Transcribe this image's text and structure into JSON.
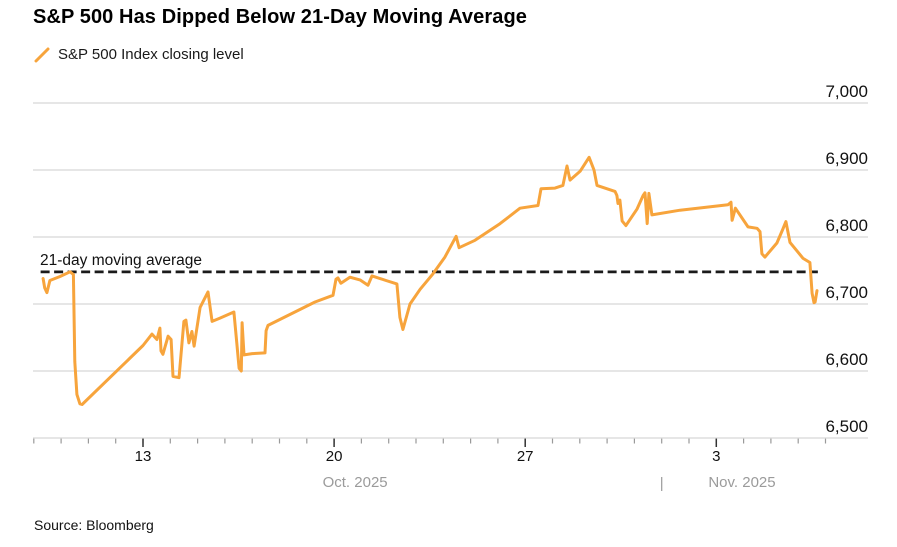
{
  "title": "S&P 500 Has Dipped Below 21-Day Moving Average",
  "legend": {
    "label": "S&P 500 Index closing level",
    "marker_color": "#F7A43C"
  },
  "source": "Source: Bloomberg",
  "chart_data": {
    "type": "line",
    "title": "S&P 500 Has Dipped Below 21-Day Moving Average",
    "grid": true,
    "legend_position": "top-left",
    "y_axis": {
      "side": "right",
      "range": [
        6500,
        7000
      ],
      "ticks": [
        {
          "value": 7000,
          "label": "7,000"
        },
        {
          "value": 6900,
          "label": "6,900"
        },
        {
          "value": 6800,
          "label": "6,800"
        },
        {
          "value": 6700,
          "label": "6,700"
        },
        {
          "value": 6600,
          "label": "6,600"
        },
        {
          "value": 6500,
          "label": "6,500"
        }
      ]
    },
    "x_axis": {
      "unit": "calendar-day-index (October day number; November = day + 31)",
      "range": [
        8.97,
        39.56
      ],
      "minor_tick_days": [
        9,
        10,
        11,
        12,
        13,
        14,
        15,
        16,
        17,
        18,
        19,
        20,
        21,
        22,
        23,
        24,
        25,
        26,
        27,
        28,
        29,
        30,
        31,
        32,
        33,
        34,
        35,
        36,
        37,
        38
      ],
      "major_ticks": [
        {
          "day": 13,
          "label": "13"
        },
        {
          "day": 20,
          "label": "20"
        },
        {
          "day": 27,
          "label": "27"
        },
        {
          "day": 34,
          "label": "3"
        }
      ],
      "month_labels": [
        {
          "label": "Oct. 2025",
          "center_day": 20.77
        },
        {
          "label": "Nov. 2025",
          "center_day": 34.94
        }
      ],
      "divider": {
        "glyph": "|",
        "day": 32
      }
    },
    "annotation_line": {
      "label": "21-day moving average",
      "value": 6748,
      "style": "dashed",
      "color": "#1a1a1a",
      "span_days": [
        9.25,
        37.72
      ]
    },
    "series": [
      {
        "name": "S&P 500 Index closing level",
        "color": "#F7A43C",
        "points": [
          [
            9.34,
            6738
          ],
          [
            9.4,
            6724
          ],
          [
            9.48,
            6717
          ],
          [
            9.59,
            6735
          ],
          [
            9.96,
            6741
          ],
          [
            10.33,
            6748
          ],
          [
            10.45,
            6744
          ],
          [
            10.5,
            6614
          ],
          [
            10.58,
            6565
          ],
          [
            10.69,
            6551
          ],
          [
            10.77,
            6550
          ],
          [
            13.0,
            6638
          ],
          [
            13.33,
            6655
          ],
          [
            13.51,
            6647
          ],
          [
            13.62,
            6664
          ],
          [
            13.66,
            6630
          ],
          [
            13.73,
            6625
          ],
          [
            13.92,
            6652
          ],
          [
            14.03,
            6647
          ],
          [
            14.1,
            6592
          ],
          [
            14.32,
            6590
          ],
          [
            14.5,
            6674
          ],
          [
            14.57,
            6676
          ],
          [
            14.68,
            6642
          ],
          [
            14.79,
            6659
          ],
          [
            14.87,
            6637
          ],
          [
            15.09,
            6695
          ],
          [
            15.38,
            6718
          ],
          [
            15.53,
            6674
          ],
          [
            15.82,
            6679
          ],
          [
            16.33,
            6688
          ],
          [
            16.44,
            6640
          ],
          [
            16.52,
            6604
          ],
          [
            16.6,
            6600
          ],
          [
            16.63,
            6672
          ],
          [
            16.7,
            6624
          ],
          [
            17.0,
            6626
          ],
          [
            17.47,
            6627
          ],
          [
            17.51,
            6660
          ],
          [
            17.58,
            6668
          ],
          [
            19.3,
            6703
          ],
          [
            19.96,
            6713
          ],
          [
            20.07,
            6737
          ],
          [
            20.14,
            6739
          ],
          [
            20.25,
            6731
          ],
          [
            20.58,
            6740
          ],
          [
            20.95,
            6736
          ],
          [
            21.24,
            6728
          ],
          [
            21.39,
            6742
          ],
          [
            21.9,
            6735
          ],
          [
            22.3,
            6730
          ],
          [
            22.41,
            6680
          ],
          [
            22.52,
            6662
          ],
          [
            22.78,
            6700
          ],
          [
            23.15,
            6722
          ],
          [
            23.62,
            6745
          ],
          [
            24.06,
            6770
          ],
          [
            24.47,
            6801
          ],
          [
            24.58,
            6784
          ],
          [
            25.16,
            6795
          ],
          [
            26.08,
            6820
          ],
          [
            26.81,
            6843
          ],
          [
            27.47,
            6847
          ],
          [
            27.58,
            6872
          ],
          [
            28.09,
            6873
          ],
          [
            28.38,
            6877
          ],
          [
            28.53,
            6906
          ],
          [
            28.64,
            6885
          ],
          [
            29.01,
            6898
          ],
          [
            29.34,
            6919
          ],
          [
            29.52,
            6900
          ],
          [
            29.63,
            6877
          ],
          [
            30.29,
            6868
          ],
          [
            30.36,
            6862
          ],
          [
            30.4,
            6850
          ],
          [
            30.47,
            6855
          ],
          [
            30.55,
            6824
          ],
          [
            30.69,
            6817
          ],
          [
            31.1,
            6842
          ],
          [
            31.32,
            6862
          ],
          [
            31.39,
            6866
          ],
          [
            31.47,
            6820
          ],
          [
            31.53,
            6865
          ],
          [
            31.64,
            6833
          ],
          [
            32.67,
            6840
          ],
          [
            34.43,
            6848
          ],
          [
            34.54,
            6852
          ],
          [
            34.58,
            6825
          ],
          [
            34.7,
            6843
          ],
          [
            35.16,
            6815
          ],
          [
            35.49,
            6813
          ],
          [
            35.6,
            6808
          ],
          [
            35.67,
            6775
          ],
          [
            35.78,
            6770
          ],
          [
            36.22,
            6791
          ],
          [
            36.44,
            6812
          ],
          [
            36.55,
            6823
          ],
          [
            36.7,
            6792
          ],
          [
            37.18,
            6768
          ],
          [
            37.43,
            6762
          ],
          [
            37.51,
            6716
          ],
          [
            37.58,
            6702
          ],
          [
            37.62,
            6703
          ],
          [
            37.69,
            6720
          ]
        ]
      }
    ]
  }
}
